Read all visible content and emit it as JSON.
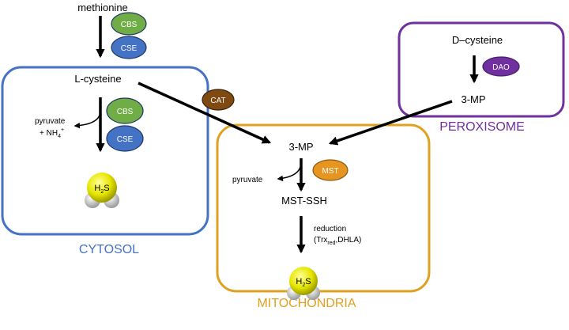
{
  "colors": {
    "cytosol": "#4472c4",
    "mitochondria": "#e0a020",
    "peroxisome": "#7030a0",
    "cbs": "#70ad47",
    "cse": "#4472c4",
    "cat": "#7f4a12",
    "mst": "#e69620",
    "dao": "#7030a0",
    "h2s_sulfur": "#e6e600",
    "h2s_hydrogen": "#d0d0d0"
  },
  "top": {
    "methionine": "methionine",
    "cbs": "CBS",
    "cse": "CSE"
  },
  "cytosol": {
    "title": "CYTOSOL",
    "substrate": "L-cysteine",
    "side_line1": "pyruvate",
    "side_line2": "+ NH",
    "side_sub": "4",
    "side_sup": "+",
    "cbs": "CBS",
    "cse": "CSE",
    "h2s_h": "H",
    "h2s_sub": "2",
    "h2s_s": "S"
  },
  "cat": "CAT",
  "peroxisome": {
    "title": "PEROXISOME",
    "substrate": "D–cysteine",
    "enzyme": "DAO",
    "product": "3-MP"
  },
  "mitochondria": {
    "title": "MITOCHONDRIA",
    "substrate": "3-MP",
    "side": "pyruvate",
    "enzyme": "MST",
    "intermediate": "MST-SSH",
    "reduction": "reduction",
    "reductant_open": "(Trx",
    "reductant_sub": "red",
    "reductant_rest": ",DHLA)",
    "h2s_h": "H",
    "h2s_sub": "2",
    "h2s_s": "S"
  }
}
